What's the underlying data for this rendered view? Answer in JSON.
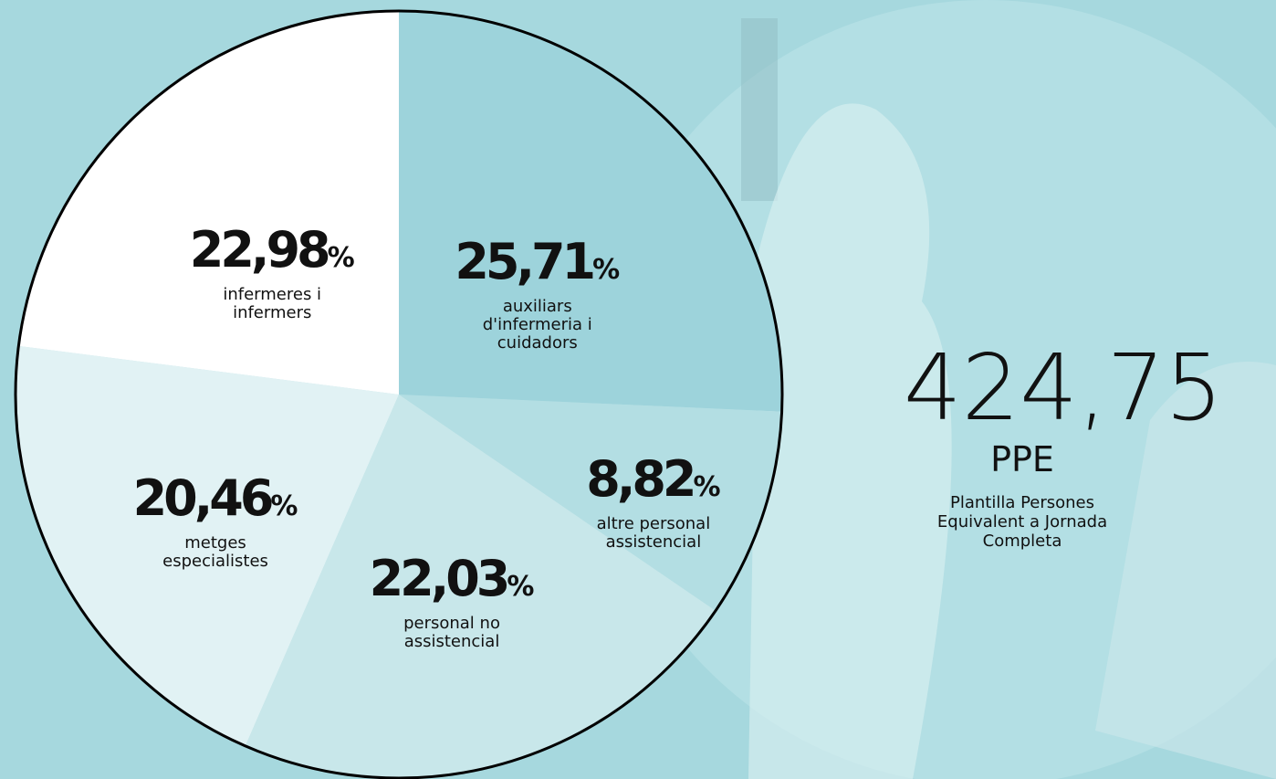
{
  "chart_data": {
    "type": "pie",
    "categories": [
      "auxiliars d'infermeria i cuidadors",
      "altre personal assistencial",
      "personal no assistencial",
      "metges especialistes",
      "infermeres i infermers"
    ],
    "values": [
      25.71,
      8.82,
      22.03,
      20.46,
      22.98
    ],
    "value_labels": [
      "25,71",
      "8,82",
      "22,03",
      "20,46",
      "22,98"
    ],
    "value_suffix": "%",
    "colors": [
      "#9dd3db",
      "#b3dee3",
      "#c8e7ea",
      "#e1f2f4",
      "#ffffff"
    ]
  },
  "annotation": {
    "value": "424,75",
    "unit": "PPE",
    "description": "Plantilla Persones Equivalent a Jornada Completa"
  }
}
